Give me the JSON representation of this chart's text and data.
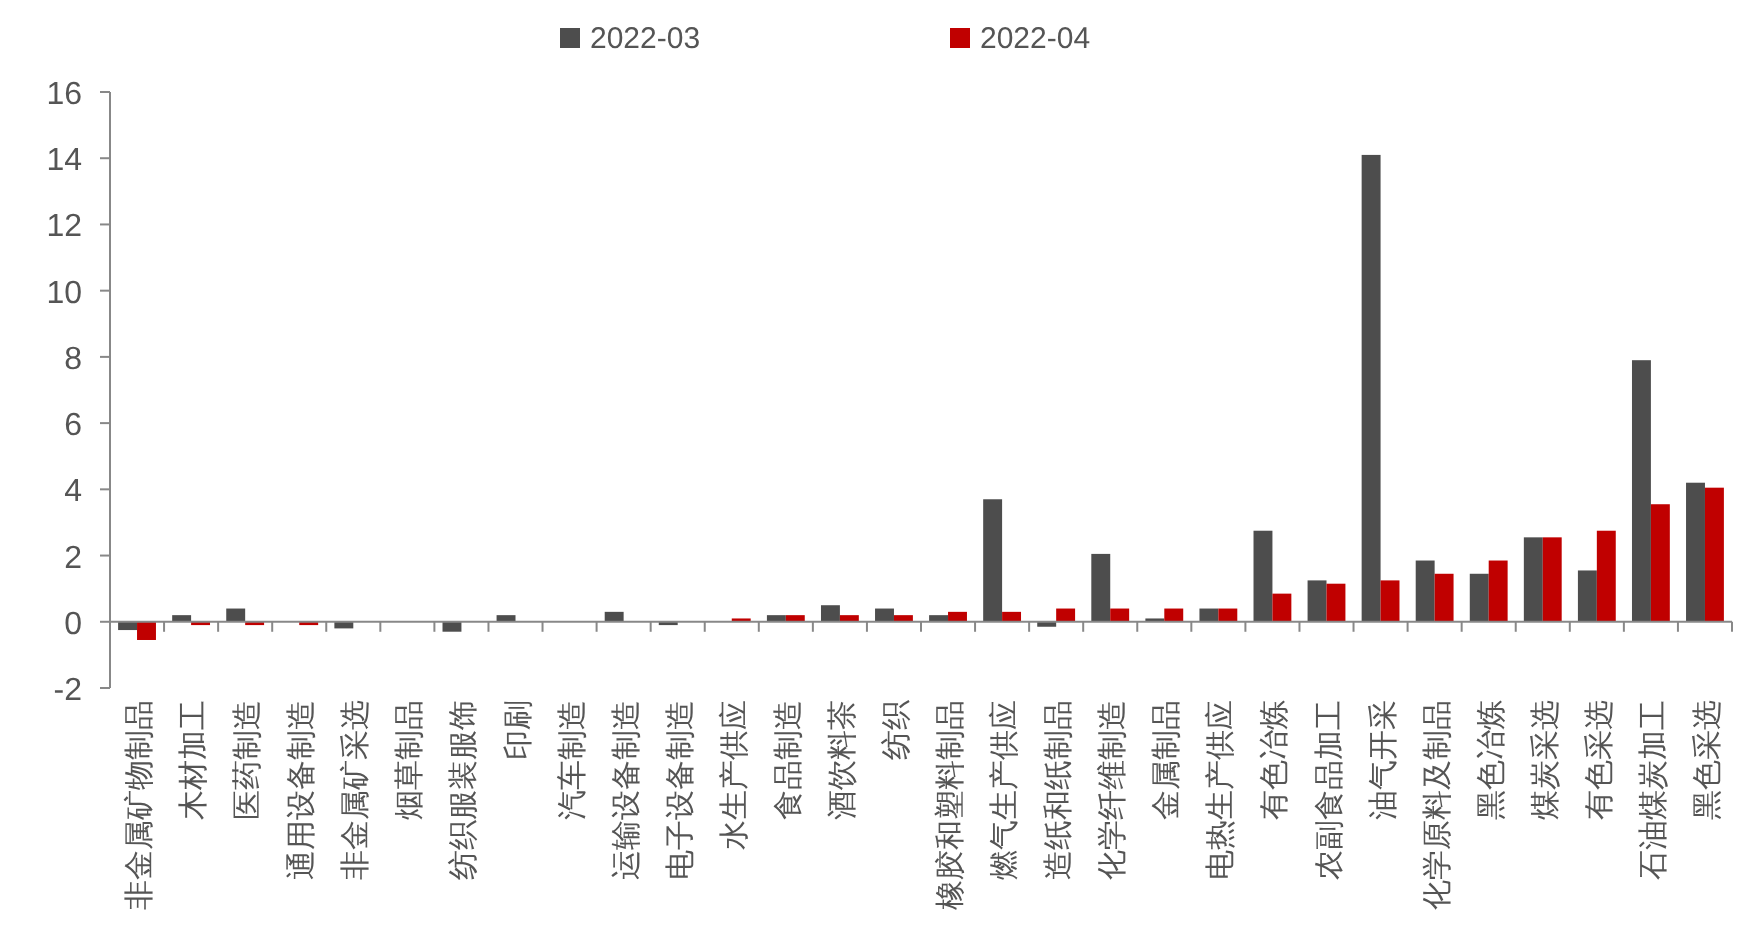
{
  "chart_data": {
    "type": "bar",
    "legend": "top",
    "ylim": [
      -2,
      16
    ],
    "yticks": [
      -2,
      0,
      2,
      4,
      6,
      8,
      10,
      12,
      14,
      16
    ],
    "categories": [
      "非金属矿物制品",
      "木材加工",
      "医药制造",
      "通用设备制造",
      "非金属矿采选",
      "烟草制品",
      "纺织服装服饰",
      "印刷",
      "汽车制造",
      "运输设备制造",
      "电子设备制造",
      "水生产供应",
      "食品制造",
      "酒饮料茶",
      "纺织",
      "橡胶和塑料制品",
      "燃气生产供应",
      "造纸和纸制品",
      "化学纤维制造",
      "金属制品",
      "电热生产供应",
      "有色冶炼",
      "农副食品加工",
      "油气开采",
      "化学原料及制品",
      "黑色冶炼",
      "煤炭采选",
      "有色采选",
      "石油煤炭加工",
      "黑色采选"
    ],
    "series": [
      {
        "name": "2022-03",
        "color": "#4d4d4d",
        "values": [
          -0.25,
          0.2,
          0.4,
          0,
          -0.2,
          0,
          -0.3,
          0.2,
          0,
          0.3,
          -0.1,
          0,
          0.2,
          0.5,
          0.4,
          0.2,
          3.7,
          -0.15,
          2.05,
          0.1,
          0.4,
          2.75,
          1.25,
          14.1,
          1.85,
          1.45,
          2.55,
          1.55,
          7.9,
          4.2
        ]
      },
      {
        "name": "2022-04",
        "color": "#c00000",
        "values": [
          -0.55,
          -0.1,
          -0.1,
          -0.1,
          0,
          0,
          0,
          0,
          0,
          0,
          0,
          0.1,
          0.2,
          0.2,
          0.2,
          0.3,
          0.3,
          0.4,
          0.4,
          0.4,
          0.4,
          0.85,
          1.15,
          1.25,
          1.45,
          1.85,
          2.55,
          2.75,
          3.55,
          4.05
        ]
      }
    ]
  }
}
